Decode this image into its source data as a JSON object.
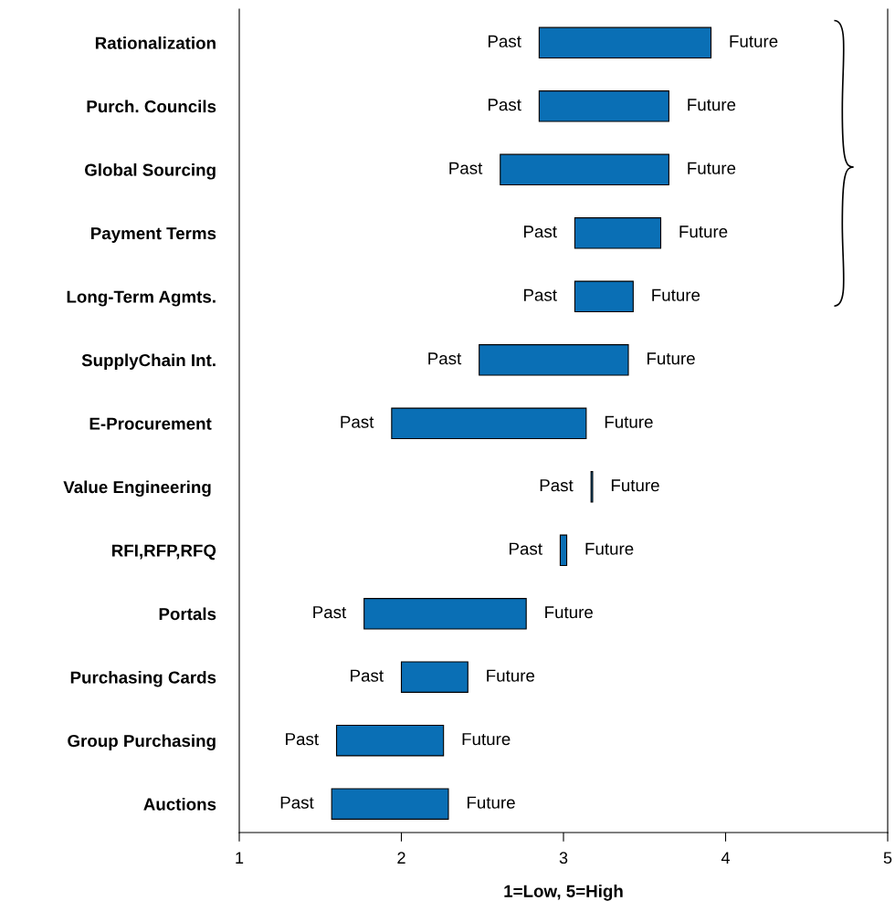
{
  "chart_data": {
    "type": "bar",
    "orientation": "horizontal",
    "xlabel": "1=Low, 5=High",
    "categories": [
      "Rationalization",
      "Purch. Councils",
      "Global Sourcing",
      "Payment Terms",
      "Long-Term Agmts.",
      "SupplyChain Int.",
      "E-Procurement ",
      "Value Engineering ",
      "RFI,RFP,RFQ",
      "Portals",
      "Purchasing Cards",
      "Group Purchasing",
      "Auctions"
    ],
    "base": [
      2.85,
      2.85,
      2.61,
      3.07,
      3.07,
      2.48,
      1.94,
      3.17,
      2.98,
      1.77,
      2.0,
      1.6,
      1.57
    ],
    "values": [
      1.06,
      0.8,
      1.04,
      0.53,
      0.36,
      0.92,
      1.2,
      0.01,
      0.04,
      1.0,
      0.41,
      0.66,
      0.72
    ],
    "color": "#0a6fb5",
    "xlim": [
      1,
      5
    ],
    "xticks": [
      1,
      2,
      3,
      4,
      5
    ],
    "grid": false,
    "annotations": [
      {
        "text": "Past",
        "x": 2.85,
        "y": "Rationalization"
      },
      {
        "text": "Future",
        "x": 3.91,
        "y": "Rationalization"
      },
      {
        "text": "Past",
        "x": 2.85,
        "y": "Purch. Councils"
      },
      {
        "text": "Future",
        "x": 3.65,
        "y": "Purch. Councils"
      },
      {
        "text": "Past",
        "x": 2.61,
        "y": "Global Sourcing"
      },
      {
        "text": "Future",
        "x": 3.65,
        "y": "Global Sourcing"
      },
      {
        "text": "Past",
        "x": 3.07,
        "y": "Payment Terms"
      },
      {
        "text": "Future",
        "x": 3.6,
        "y": "Payment Terms"
      },
      {
        "text": "Past",
        "x": 3.07,
        "y": "Long-Term Agmts."
      },
      {
        "text": "Future",
        "x": 3.43,
        "y": "Long-Term Agmts."
      },
      {
        "text": "Past",
        "x": 2.48,
        "y": "SupplyChain Int."
      },
      {
        "text": "Future",
        "x": 3.4,
        "y": "SupplyChain Int."
      },
      {
        "text": "Past",
        "x": 1.94,
        "y": "E-Procurement "
      },
      {
        "text": "Future",
        "x": 3.14,
        "y": "E-Procurement "
      },
      {
        "text": "Past",
        "x": 3.17,
        "y": "Value Engineering "
      },
      {
        "text": "Future",
        "x": 3.18,
        "y": "Value Engineering "
      },
      {
        "text": "Past",
        "x": 2.98,
        "y": "RFI,RFP,RFQ"
      },
      {
        "text": "Future",
        "x": 3.02,
        "y": "RFI,RFP,RFQ"
      },
      {
        "text": "Past",
        "x": 1.77,
        "y": "Portals"
      },
      {
        "text": "Future",
        "x": 2.77,
        "y": "Portals"
      },
      {
        "text": "Past",
        "x": 2.0,
        "y": "Purchasing Cards"
      },
      {
        "text": "Future",
        "x": 2.41,
        "y": "Purchasing Cards"
      },
      {
        "text": "Past",
        "x": 1.6,
        "y": "Group Purchasing"
      },
      {
        "text": "Future",
        "x": 2.26,
        "y": "Group Purchasing"
      },
      {
        "text": "Past",
        "x": 1.57,
        "y": "Auctions"
      },
      {
        "text": "Future",
        "x": 2.29,
        "y": "Auctions"
      }
    ]
  }
}
